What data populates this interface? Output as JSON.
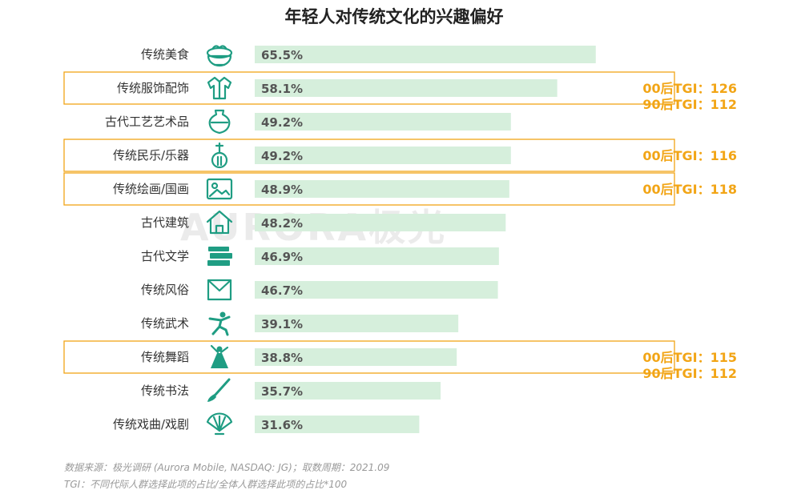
{
  "chart_data": {
    "type": "bar",
    "orientation": "horizontal",
    "title": "年轻人对传统文化的兴趣偏好",
    "xlabel": "",
    "ylabel": "",
    "xlim": [
      0,
      100
    ],
    "grid": false,
    "legend": "none",
    "bar_color": "#d6efdc",
    "icon_color": "#1f9d83",
    "highlight_color": "#f2a516",
    "categories": [
      "传统美食",
      "传统服饰配饰",
      "古代工艺艺术品",
      "传统民乐/乐器",
      "传统绘画/国画",
      "古代建筑",
      "古代文学",
      "传统风俗",
      "传统武术",
      "传统舞蹈",
      "传统书法",
      "传统戏曲/戏剧"
    ],
    "values": [
      65.5,
      58.1,
      49.2,
      49.2,
      48.9,
      48.2,
      46.9,
      46.7,
      39.1,
      38.8,
      35.7,
      31.6
    ],
    "value_labels": [
      "65.5%",
      "58.1%",
      "49.2%",
      "49.2%",
      "48.9%",
      "48.2%",
      "46.9%",
      "46.7%",
      "39.1%",
      "38.8%",
      "35.7%",
      "31.6%"
    ],
    "icons": [
      "food-bowl-icon",
      "clothing-icon",
      "vase-icon",
      "lute-icon",
      "painting-icon",
      "house-icon",
      "books-icon",
      "envelope-icon",
      "martial-arts-icon",
      "dancer-icon",
      "brush-icon",
      "fan-icon"
    ],
    "annotations": [
      {
        "category_index": 1,
        "lines": [
          "00后TGI：126",
          "90后TGI：112"
        ]
      },
      {
        "category_index": 3,
        "lines": [
          "00后TGI：116"
        ]
      },
      {
        "category_index": 4,
        "lines": [
          "00后TGI：118"
        ]
      },
      {
        "category_index": 9,
        "lines": [
          "00后TGI：115",
          "90后TGI：112"
        ]
      }
    ],
    "watermark": "AURORA极光",
    "source_note": "数据来源：极光调研 (Aurora Mobile, NASDAQ: JG)；取数周期：2021.09",
    "tgi_note": "TGI：不同代际人群选择此项的占比/全体人群选择此项的占比*100"
  }
}
